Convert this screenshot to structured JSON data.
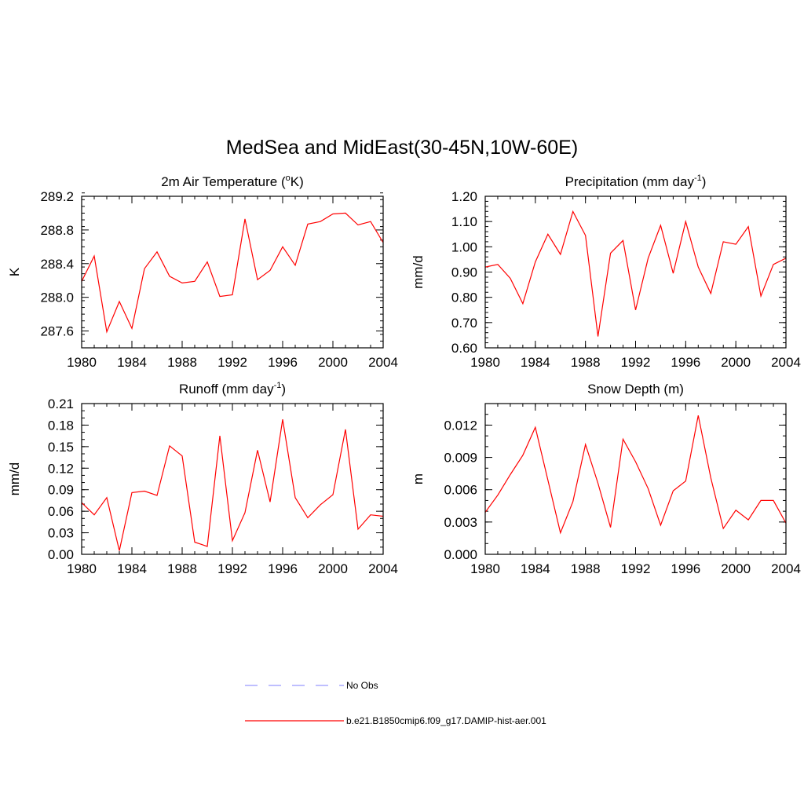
{
  "figure": {
    "title": "MedSea and MidEast(30-45N,10W-60E)"
  },
  "colors": {
    "series_line": "#ff0000",
    "obs_line": "#9999ff",
    "axis": "#000000"
  },
  "legend": {
    "placement": "bottom-center",
    "entries": [
      {
        "label": "No Obs",
        "style": "dashed",
        "color": "#9999ff"
      },
      {
        "label": "b.e21.B1850cmip6.f09_g17.DAMIP-hist-aer.001",
        "style": "solid",
        "color": "#ff0000"
      }
    ]
  },
  "chart_data": [
    {
      "type": "line",
      "title": "2m Air Temperature",
      "title_unit_pre": "(",
      "title_sup": "o",
      "title_unit_post": "K)",
      "ylabel": "K",
      "xlabel": "",
      "xlim": [
        1980,
        2004
      ],
      "ylim": [
        287.4,
        289.2
      ],
      "xticks": [
        1980,
        1984,
        1988,
        1992,
        1996,
        2000,
        2004
      ],
      "xtick_labels": [
        "1980",
        "1984",
        "1988",
        "1992",
        "1996",
        "2000",
        "2004"
      ],
      "yticks": [
        287.6,
        288.0,
        288.4,
        288.8,
        289.2
      ],
      "ytick_labels": [
        "287.6",
        "288.0",
        "288.4",
        "288.8",
        "289.2"
      ],
      "yminor_step": 0.08,
      "grid": false,
      "series": [
        {
          "color": "#ff0000",
          "x": [
            1980,
            1981,
            1982,
            1983,
            1984,
            1985,
            1986,
            1987,
            1988,
            1989,
            1990,
            1991,
            1992,
            1993,
            1994,
            1995,
            1996,
            1997,
            1998,
            1999,
            2000,
            2001,
            2002,
            2003,
            2004
          ],
          "y": [
            288.19,
            288.49,
            287.59,
            287.95,
            287.63,
            288.34,
            288.54,
            288.25,
            288.17,
            288.19,
            288.42,
            288.01,
            288.03,
            288.93,
            288.21,
            288.32,
            288.6,
            288.38,
            288.87,
            288.9,
            288.99,
            289.0,
            288.86,
            288.9,
            288.65
          ]
        }
      ]
    },
    {
      "type": "line",
      "title": "Precipitation",
      "title_unit_pre": "(mm day",
      "title_sup": "-1",
      "title_unit_post": ")",
      "ylabel": "mm/d",
      "xlabel": "",
      "xlim": [
        1980,
        2004
      ],
      "ylim": [
        0.6,
        1.2
      ],
      "xticks": [
        1980,
        1984,
        1988,
        1992,
        1996,
        2000,
        2004
      ],
      "xtick_labels": [
        "1980",
        "1984",
        "1988",
        "1992",
        "1996",
        "2000",
        "2004"
      ],
      "yticks": [
        0.6,
        0.7,
        0.8,
        0.9,
        1.0,
        1.1,
        1.2
      ],
      "ytick_labels": [
        "0.60",
        "0.70",
        "0.80",
        "0.90",
        "1.00",
        "1.10",
        "1.20"
      ],
      "yminor_step": 0.02,
      "grid": false,
      "series": [
        {
          "color": "#ff0000",
          "x": [
            1980,
            1981,
            1982,
            1983,
            1984,
            1985,
            1986,
            1987,
            1988,
            1989,
            1990,
            1991,
            1992,
            1993,
            1994,
            1995,
            1996,
            1997,
            1998,
            1999,
            2000,
            2001,
            2002,
            2003,
            2004
          ],
          "y": [
            0.92,
            0.93,
            0.875,
            0.775,
            0.94,
            1.05,
            0.97,
            1.14,
            1.045,
            0.645,
            0.975,
            1.025,
            0.75,
            0.955,
            1.085,
            0.895,
            1.1,
            0.92,
            0.815,
            1.02,
            1.01,
            1.08,
            0.805,
            0.93,
            0.955
          ]
        }
      ]
    },
    {
      "type": "line",
      "title": "Runoff",
      "title_unit_pre": "(mm day",
      "title_sup": "-1",
      "title_unit_post": ")",
      "ylabel": "mm/d",
      "xlabel": "",
      "xlim": [
        1980,
        2004
      ],
      "ylim": [
        0.0,
        0.21
      ],
      "xticks": [
        1980,
        1984,
        1988,
        1992,
        1996,
        2000,
        2004
      ],
      "xtick_labels": [
        "1980",
        "1984",
        "1988",
        "1992",
        "1996",
        "2000",
        "2004"
      ],
      "yticks": [
        0.0,
        0.03,
        0.06,
        0.09,
        0.12,
        0.15,
        0.18,
        0.21
      ],
      "ytick_labels": [
        "0.00",
        "0.03",
        "0.06",
        "0.09",
        "0.12",
        "0.15",
        "0.18",
        "0.21"
      ],
      "yminor_step": 0.01,
      "grid": false,
      "series": [
        {
          "color": "#ff0000",
          "x": [
            1980,
            1981,
            1982,
            1983,
            1984,
            1985,
            1986,
            1987,
            1988,
            1989,
            1990,
            1991,
            1992,
            1993,
            1994,
            1995,
            1996,
            1997,
            1998,
            1999,
            2000,
            2001,
            2002,
            2003,
            2004
          ],
          "y": [
            0.072,
            0.055,
            0.079,
            0.005,
            0.086,
            0.088,
            0.082,
            0.151,
            0.137,
            0.017,
            0.011,
            0.165,
            0.019,
            0.058,
            0.145,
            0.073,
            0.188,
            0.079,
            0.051,
            0.069,
            0.083,
            0.174,
            0.035,
            0.055,
            0.053
          ]
        }
      ]
    },
    {
      "type": "line",
      "title": "Snow Depth (m)",
      "title_unit_pre": "",
      "title_sup": "",
      "title_unit_post": "",
      "ylabel": "m",
      "xlabel": "",
      "xlim": [
        1980,
        2004
      ],
      "ylim": [
        0.0,
        0.014
      ],
      "xticks": [
        1980,
        1984,
        1988,
        1992,
        1996,
        2000,
        2004
      ],
      "xtick_labels": [
        "1980",
        "1984",
        "1988",
        "1992",
        "1996",
        "2000",
        "2004"
      ],
      "yticks": [
        0.0,
        0.003,
        0.006,
        0.009,
        0.012
      ],
      "ytick_labels": [
        "0.000",
        "0.003",
        "0.006",
        "0.009",
        "0.012"
      ],
      "yminor_step": 0.001,
      "grid": false,
      "series": [
        {
          "color": "#ff0000",
          "x": [
            1980,
            1981,
            1982,
            1983,
            1984,
            1985,
            1986,
            1987,
            1988,
            1989,
            1990,
            1991,
            1992,
            1993,
            1994,
            1995,
            1996,
            1997,
            1998,
            1999,
            2000,
            2001,
            2002,
            2003,
            2004
          ],
          "y": [
            0.0039,
            0.0055,
            0.0074,
            0.0092,
            0.0118,
            0.0069,
            0.002,
            0.0049,
            0.0102,
            0.0066,
            0.0025,
            0.0107,
            0.0086,
            0.0061,
            0.0027,
            0.0059,
            0.0068,
            0.0129,
            0.0071,
            0.0024,
            0.0041,
            0.0032,
            0.005,
            0.005,
            0.0029
          ]
        }
      ]
    }
  ]
}
